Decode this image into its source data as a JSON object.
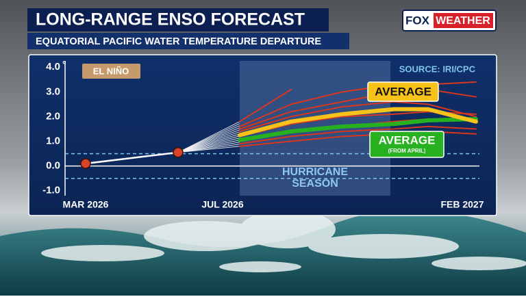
{
  "header": {
    "title": "LONG-RANGE ENSO FORECAST",
    "subtitle": "EQUATORIAL PACIFIC WATER TEMPERATURE DEPARTURE",
    "brand": {
      "fox": "FOX",
      "weather": "WEATHER"
    }
  },
  "chart_data": {
    "type": "line",
    "badge": "EL NIÑO",
    "source": "SOURCE: IRI/CPC",
    "y_unit": "°",
    "xlim": [
      -0.1,
      11.5
    ],
    "xticks": [
      {
        "value": 0,
        "label": "MAR 2026"
      },
      {
        "value": 4,
        "label": "JUL 2026"
      },
      {
        "value": 11,
        "label": "FEB 2027"
      }
    ],
    "ylim": [
      -1.2,
      4.2
    ],
    "yticks": [
      {
        "value": 4,
        "label": "4.0"
      },
      {
        "value": 3,
        "label": "3.0"
      },
      {
        "value": 2,
        "label": "2.0"
      },
      {
        "value": 1,
        "label": "1.0"
      },
      {
        "value": 0,
        "label": "0.0"
      },
      {
        "value": -1,
        "label": "-1.0"
      }
    ],
    "reference_lines": [
      0.5,
      -0.5
    ],
    "shade": {
      "xlim": [
        4.5,
        8.9
      ],
      "label": [
        "HURRICANE",
        "SEASON"
      ]
    },
    "observed": {
      "color": "#ffffff",
      "marker_color": "#d9432a",
      "x": [
        0,
        2.7
      ],
      "values": [
        0.1,
        0.55
      ]
    },
    "x": [
      4.5,
      6,
      7.5,
      9,
      10,
      11.4
    ],
    "series": [
      {
        "color": "#d8371e",
        "values": [
          1.8,
          3.1,
          null,
          null,
          null,
          null
        ]
      },
      {
        "color": "#d8371e",
        "values": [
          1.6,
          2.5,
          3.0,
          3.3,
          3.1,
          2.8
        ]
      },
      {
        "color": "#d8371e",
        "values": [
          1.5,
          2.2,
          2.6,
          3.0,
          3.3,
          3.4
        ]
      },
      {
        "color": "#d8371e",
        "values": [
          1.4,
          2.0,
          2.4,
          2.6,
          2.5,
          2.0
        ]
      },
      {
        "color": "#d8371e",
        "values": [
          1.2,
          1.7,
          2.0,
          2.1,
          2.2,
          2.1
        ]
      },
      {
        "color": "#d8371e",
        "values": [
          1.0,
          1.4,
          1.6,
          1.8,
          1.9,
          1.9
        ]
      },
      {
        "color": "#d8371e",
        "values": [
          0.9,
          1.2,
          1.4,
          1.5,
          1.6,
          1.5
        ]
      },
      {
        "color": "#d8371e",
        "values": [
          0.8,
          1.0,
          1.2,
          1.3,
          1.4,
          1.3
        ]
      },
      {
        "name": "AVERAGE",
        "note": "(FROM APRIL)",
        "color": "#27b01f",
        "values": [
          1.05,
          1.4,
          1.6,
          1.7,
          1.85,
          1.9
        ]
      },
      {
        "name": "AVERAGE",
        "color": "#f7c21a",
        "values": [
          1.25,
          1.8,
          2.1,
          2.3,
          2.3,
          1.8
        ]
      }
    ]
  }
}
